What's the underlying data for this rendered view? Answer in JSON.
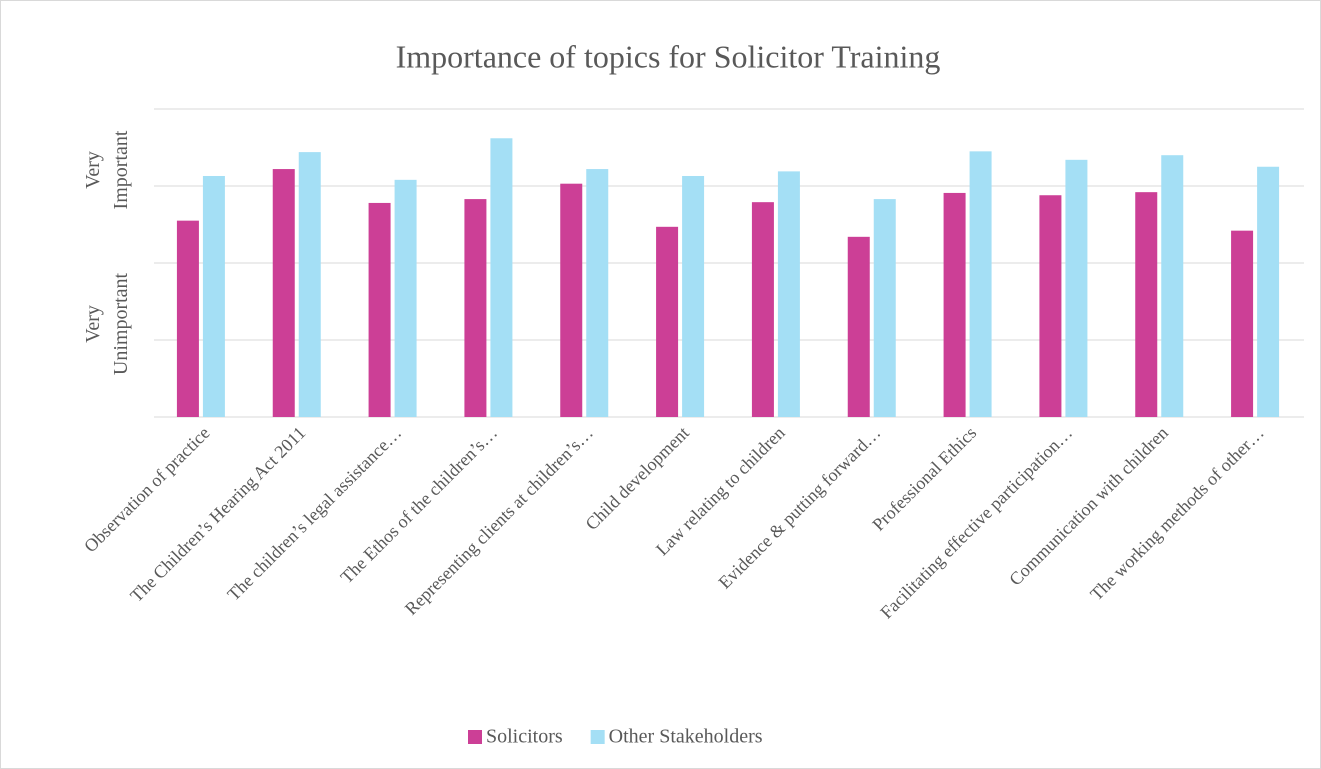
{
  "chart_data": {
    "type": "bar",
    "title": "Importance of topics for Solicitor Training",
    "categories": [
      "Observation of practice",
      "The Children’s Hearing Act 2011",
      "The children’s legal assistance…",
      "The Ethos of the children’s…",
      "Representing clients at children’s…",
      "Child development",
      "Law relating to children",
      "Evidence & putting forward…",
      "Professional Ethics",
      "Facilitating effective participation…",
      "Communication with children",
      "The working methods of other…"
    ],
    "series": [
      {
        "name": "Solicitors",
        "color": "#cc3f96",
        "values": [
          2.55,
          3.22,
          2.78,
          2.83,
          3.03,
          2.47,
          2.79,
          2.34,
          2.91,
          2.88,
          2.92,
          2.42
        ]
      },
      {
        "name": "Other Stakeholders",
        "color": "#a4dff5",
        "values": [
          3.13,
          3.44,
          3.08,
          3.62,
          3.22,
          3.13,
          3.19,
          2.83,
          3.45,
          3.34,
          3.4,
          3.25
        ]
      }
    ],
    "ylim": [
      0,
      4
    ],
    "yticks": [
      0,
      1,
      2,
      3,
      4
    ],
    "grid": true,
    "y_labels": [
      {
        "value": 1,
        "label": "Very Unimportant"
      },
      {
        "value": 3,
        "label": "Very Important"
      }
    ],
    "legend": "bottom"
  }
}
